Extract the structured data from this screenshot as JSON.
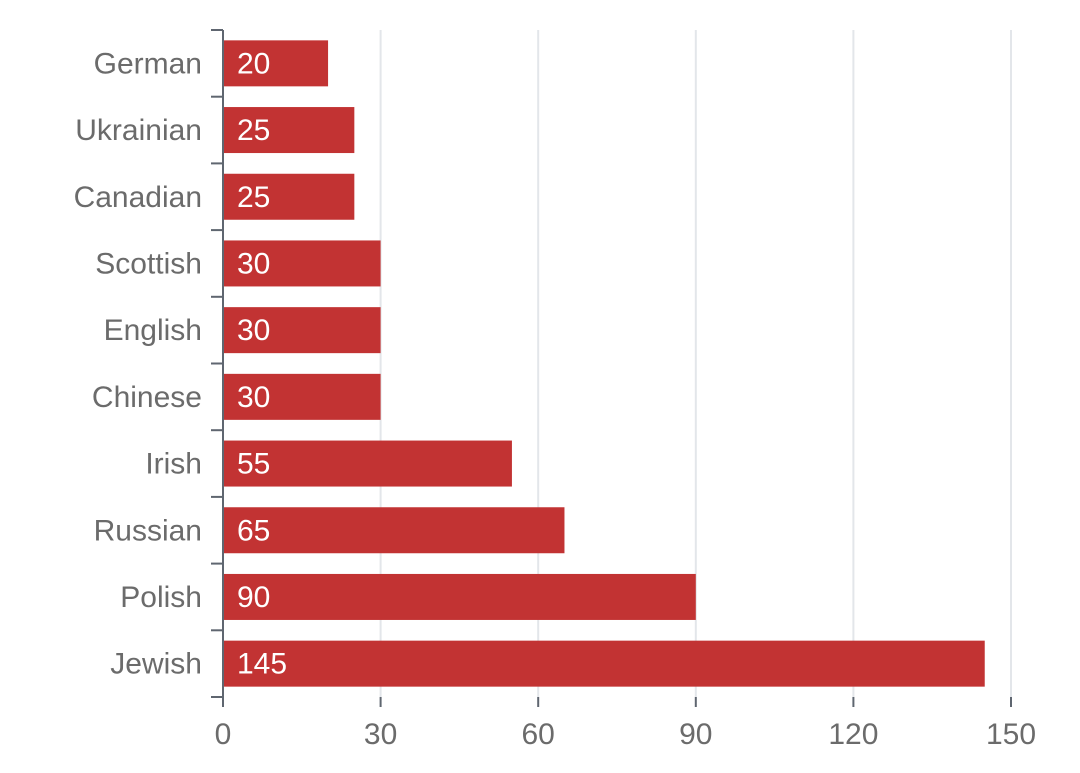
{
  "chart_data": {
    "type": "bar",
    "orientation": "horizontal",
    "categories": [
      "German",
      "Ukrainian",
      "Canadian",
      "Scottish",
      "English",
      "Chinese",
      "Irish",
      "Russian",
      "Polish",
      "Jewish"
    ],
    "values": [
      20,
      25,
      25,
      30,
      30,
      30,
      55,
      65,
      90,
      145
    ],
    "xlim": [
      0,
      150
    ],
    "xticks": [
      0,
      30,
      60,
      90,
      120,
      150
    ],
    "bar_color": "#c23333",
    "grid": "vertical",
    "data_labels": "inside-left",
    "title": "",
    "xlabel": "",
    "ylabel": ""
  }
}
